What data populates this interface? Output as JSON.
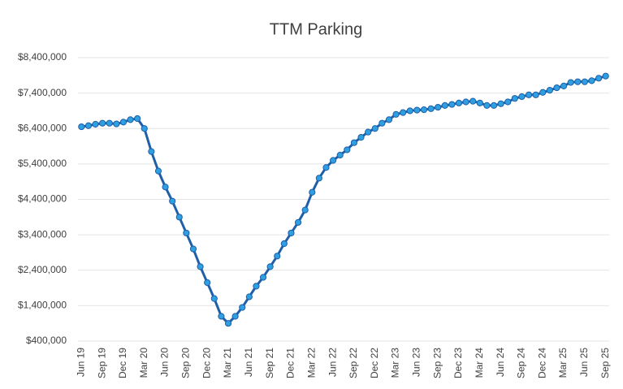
{
  "chart_data": {
    "type": "line",
    "title": "TTM Parking",
    "categories": [
      "Jun 19",
      null,
      null,
      "Sep 19",
      null,
      null,
      "Dec 19",
      null,
      null,
      "Mar 20",
      null,
      null,
      "Jun 20",
      null,
      null,
      "Sep 20",
      null,
      null,
      "Dec 20",
      null,
      null,
      "Mar 21",
      null,
      null,
      "Jun 21",
      null,
      null,
      "Sep 21",
      null,
      null,
      "Dec 21",
      null,
      null,
      "Mar 22",
      null,
      null,
      "Jun 22",
      null,
      null,
      "Sep 22",
      null,
      null,
      "Dec 22",
      null,
      null,
      "Mar 23",
      null,
      null,
      "Jun 23",
      null,
      null,
      "Sep 23",
      null,
      null,
      "Dec 23",
      null,
      null,
      "Mar 24",
      null,
      null,
      "Jun 24",
      null,
      null,
      "Sep 24",
      null,
      null,
      "Dec 24",
      null,
      null,
      "Mar 25",
      null,
      null,
      "Jun 25",
      null,
      null,
      "Sep 25"
    ],
    "values": [
      6450000,
      6480000,
      6520000,
      6550000,
      6550000,
      6530000,
      6580000,
      6650000,
      6680000,
      6400000,
      5750000,
      5200000,
      4750000,
      4350000,
      3900000,
      3450000,
      3000000,
      2500000,
      2050000,
      1600000,
      1100000,
      900000,
      1100000,
      1350000,
      1650000,
      1950000,
      2200000,
      2500000,
      2800000,
      3150000,
      3450000,
      3750000,
      4100000,
      4600000,
      5000000,
      5300000,
      5500000,
      5650000,
      5800000,
      6000000,
      6150000,
      6300000,
      6400000,
      6550000,
      6650000,
      6800000,
      6850000,
      6900000,
      6920000,
      6930000,
      6960000,
      7000000,
      7050000,
      7080000,
      7120000,
      7150000,
      7170000,
      7120000,
      7050000,
      7050000,
      7100000,
      7150000,
      7250000,
      7300000,
      7350000,
      7350000,
      7420000,
      7480000,
      7550000,
      7600000,
      7700000,
      7720000,
      7720000,
      7750000,
      7820000,
      7880000
    ],
    "line_color": "#1f5fa8",
    "marker_color": "#2e9fe0",
    "ylim": [
      400000,
      8400000
    ],
    "yticks": [
      {
        "value": 400000,
        "label": "$400,000"
      },
      {
        "value": 1400000,
        "label": "$1,400,000"
      },
      {
        "value": 2400000,
        "label": "$2,400,000"
      },
      {
        "value": 3400000,
        "label": "$3,400,000"
      },
      {
        "value": 4400000,
        "label": "$4,400,000"
      },
      {
        "value": 5400000,
        "label": "$5,400,000"
      },
      {
        "value": 6400000,
        "label": "$6,400,000"
      },
      {
        "value": 7400000,
        "label": "$7,400,000"
      },
      {
        "value": 8400000,
        "label": "$8,400,000"
      }
    ],
    "grid": true
  }
}
